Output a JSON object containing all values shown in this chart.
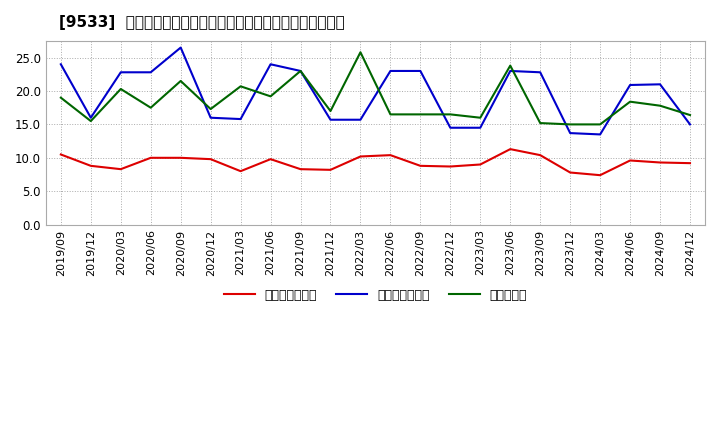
{
  "title": "[9533]  売上債権回転率、買入債務回転率、在庫回転率の推移",
  "dates": [
    "2019/09",
    "2019/12",
    "2020/03",
    "2020/06",
    "2020/09",
    "2020/12",
    "2021/03",
    "2021/06",
    "2021/09",
    "2021/12",
    "2022/03",
    "2022/06",
    "2022/09",
    "2022/12",
    "2023/03",
    "2023/06",
    "2023/09",
    "2023/12",
    "2024/03",
    "2024/06",
    "2024/09",
    "2024/12"
  ],
  "receivables_turnover": [
    10.5,
    8.8,
    8.3,
    10.0,
    10.0,
    9.8,
    8.0,
    9.8,
    8.3,
    8.2,
    10.2,
    10.4,
    8.8,
    8.7,
    9.0,
    11.3,
    10.4,
    7.8,
    7.4,
    9.6,
    9.3,
    9.2
  ],
  "payables_turnover": [
    24.0,
    16.0,
    22.8,
    22.8,
    26.5,
    16.0,
    15.8,
    24.0,
    23.0,
    15.7,
    15.7,
    23.0,
    23.0,
    14.5,
    14.5,
    23.0,
    22.8,
    13.7,
    13.5,
    20.9,
    21.0,
    15.0
  ],
  "inventory_turnover": [
    19.0,
    15.5,
    20.3,
    17.5,
    21.5,
    17.3,
    20.7,
    19.2,
    23.0,
    17.0,
    25.8,
    16.5,
    16.5,
    16.5,
    16.0,
    23.8,
    15.2,
    15.0,
    15.0,
    18.4,
    17.8,
    16.4
  ],
  "line_colors": {
    "receivables": "#dd0000",
    "payables": "#0000cc",
    "inventory": "#006600"
  },
  "legend_labels": {
    "receivables": "売上債権回転率",
    "payables": "買入債務回転率",
    "inventory": "在庫回転率"
  },
  "ylim": [
    0.0,
    27.5
  ],
  "yticks": [
    0.0,
    5.0,
    10.0,
    15.0,
    20.0,
    25.0
  ],
  "background_color": "#ffffff",
  "plot_bg_color": "#ffffff",
  "grid_color": "#aaaaaa"
}
